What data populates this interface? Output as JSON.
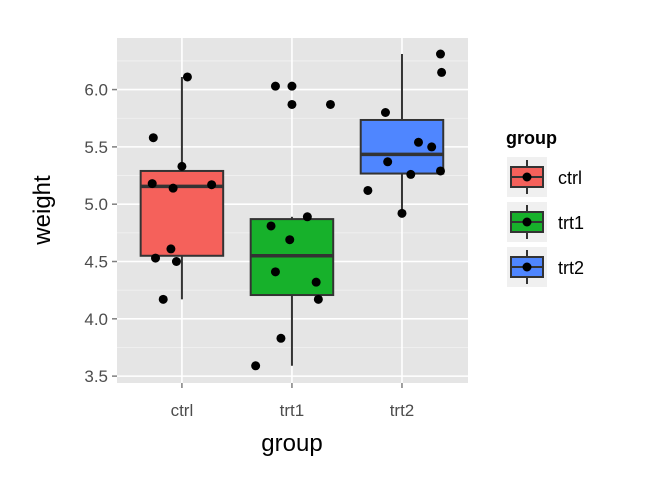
{
  "chart_data": {
    "type": "boxplot",
    "xlabel": "group",
    "ylabel": "weight",
    "categories": [
      "ctrl",
      "trt1",
      "trt2"
    ],
    "ylim": [
      3.44,
      6.45
    ],
    "yticks": [
      3.5,
      4.0,
      4.5,
      5.0,
      5.5,
      6.0
    ],
    "ytick_labels": [
      "3.5",
      "4.0",
      "4.5",
      "5.0",
      "5.5",
      "6.0"
    ],
    "grid": true,
    "legend": {
      "title": "group",
      "position": "right",
      "items": [
        "ctrl",
        "trt1",
        "trt2"
      ]
    },
    "colors": {
      "ctrl": "#F5615B",
      "trt1": "#17B12B",
      "trt2": "#4F86FF",
      "panel": "#E5E5E5",
      "grid": "#FFFFFF"
    },
    "boxes": [
      {
        "group": "ctrl",
        "lower_whisker": 4.17,
        "q1": 4.55,
        "median": 5.155,
        "q3": 5.29,
        "upper_whisker": 6.11,
        "outliers": []
      },
      {
        "group": "trt1",
        "lower_whisker": 3.59,
        "q1": 4.2075,
        "median": 4.55,
        "q3": 4.87,
        "upper_whisker": 4.89,
        "outliers": [
          5.87,
          6.03
        ]
      },
      {
        "group": "trt2",
        "lower_whisker": 4.92,
        "q1": 5.2675,
        "median": 5.435,
        "q3": 5.735,
        "upper_whisker": 6.31,
        "outliers": []
      }
    ],
    "points": [
      {
        "group": "ctrl",
        "x": 0.83,
        "y": 4.17
      },
      {
        "group": "ctrl",
        "x": 0.74,
        "y": 5.58
      },
      {
        "group": "ctrl",
        "x": 0.73,
        "y": 5.18
      },
      {
        "group": "ctrl",
        "x": 1.05,
        "y": 6.11
      },
      {
        "group": "ctrl",
        "x": 0.95,
        "y": 4.5
      },
      {
        "group": "ctrl",
        "x": 0.9,
        "y": 4.61
      },
      {
        "group": "ctrl",
        "x": 1.27,
        "y": 5.17
      },
      {
        "group": "ctrl",
        "x": 0.76,
        "y": 4.53
      },
      {
        "group": "ctrl",
        "x": 1.0,
        "y": 5.33
      },
      {
        "group": "ctrl",
        "x": 0.92,
        "y": 5.14
      },
      {
        "group": "trt1",
        "x": 1.81,
        "y": 4.81
      },
      {
        "group": "trt1",
        "x": 2.24,
        "y": 4.17
      },
      {
        "group": "trt1",
        "x": 1.85,
        "y": 4.41
      },
      {
        "group": "trt1",
        "x": 1.67,
        "y": 3.59
      },
      {
        "group": "trt1",
        "x": 2.35,
        "y": 5.87
      },
      {
        "group": "trt1",
        "x": 1.9,
        "y": 3.83
      },
      {
        "group": "trt1",
        "x": 1.85,
        "y": 6.03
      },
      {
        "group": "trt1",
        "x": 2.14,
        "y": 4.89
      },
      {
        "group": "trt1",
        "x": 2.22,
        "y": 4.32
      },
      {
        "group": "trt1",
        "x": 1.98,
        "y": 4.69
      },
      {
        "group": "trt2",
        "x": 3.35,
        "y": 6.31
      },
      {
        "group": "trt2",
        "x": 2.69,
        "y": 5.12
      },
      {
        "group": "trt2",
        "x": 3.15,
        "y": 5.54
      },
      {
        "group": "trt2",
        "x": 3.27,
        "y": 5.5
      },
      {
        "group": "trt2",
        "x": 2.87,
        "y": 5.37
      },
      {
        "group": "trt2",
        "x": 3.35,
        "y": 5.29
      },
      {
        "group": "trt2",
        "x": 3.0,
        "y": 4.92
      },
      {
        "group": "trt2",
        "x": 3.36,
        "y": 6.15
      },
      {
        "group": "trt2",
        "x": 2.85,
        "y": 5.8
      },
      {
        "group": "trt2",
        "x": 3.08,
        "y": 5.26
      }
    ]
  }
}
